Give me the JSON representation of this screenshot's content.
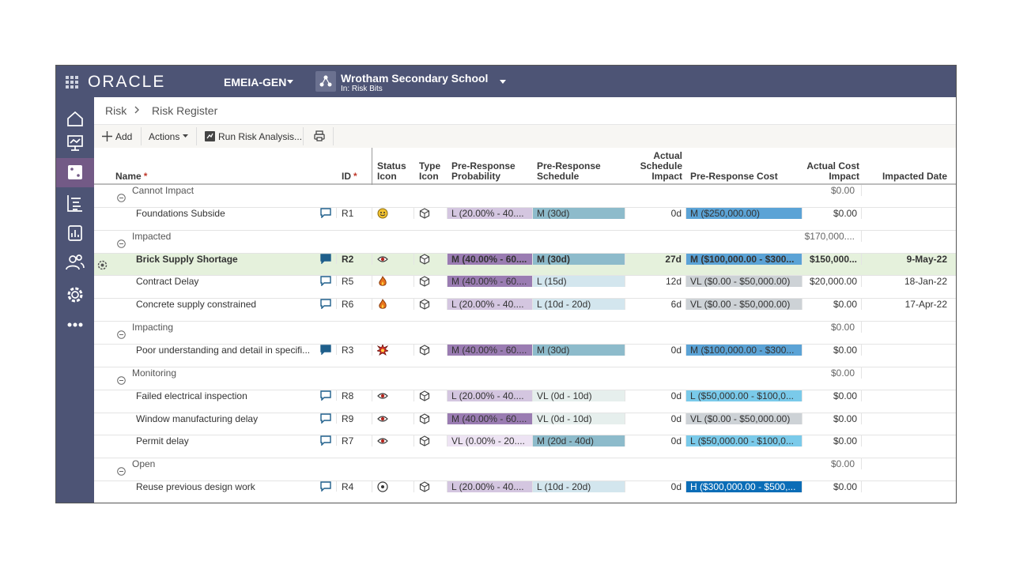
{
  "header": {
    "logo": "ORACLE",
    "workspace": "EMEIA-GEN",
    "project": "Wrotham Secondary School",
    "project_location": "In: Risk Bits"
  },
  "breadcrumb": [
    "Risk",
    "Risk Register"
  ],
  "toolbar": {
    "add": "Add",
    "actions": "Actions",
    "run": "Run Risk Analysis..."
  },
  "table": {
    "required_mark": "*",
    "columns": [
      "Name",
      "ID",
      "Status Icon",
      "Type Icon",
      "Pre-Response Probability",
      "Pre-Response Schedule",
      "Actual Schedule Impact",
      "Pre-Response Cost",
      "Actual Cost Impact",
      "Impacted Date"
    ],
    "rows": [
      {
        "group": "Cannot Impact",
        "actual_cost": "$0.00"
      },
      {
        "name": "Foundations Subside",
        "id": "R1",
        "probability": "L (20.00% - 40....",
        "schedule": "M (30d)",
        "actual_schedule": "0d",
        "cost": "M ($250,000.00)",
        "actual_cost": "$0.00"
      },
      {
        "group": "Impacted",
        "actual_cost": "$170,000...."
      },
      {
        "name": "Brick Supply Shortage",
        "id": "R2",
        "probability": "M (40.00% - 60....",
        "schedule": "M (30d)",
        "actual_schedule": "27d",
        "cost": "M ($100,000.00 - $300...",
        "actual_cost": "$150,000...",
        "date": "9-May-22"
      },
      {
        "name": "Contract Delay",
        "id": "R5",
        "probability": "M (40.00% - 60....",
        "schedule": "L (15d)",
        "actual_schedule": "12d",
        "cost": "VL ($0.00 - $50,000.00)",
        "actual_cost": "$20,000.00",
        "date": "18-Jan-22"
      },
      {
        "name": "Concrete supply constrained",
        "id": "R6",
        "probability": "L (20.00% - 40....",
        "schedule": "L (10d - 20d)",
        "actual_schedule": "6d",
        "cost": "VL ($0.00 - $50,000.00)",
        "actual_cost": "$0.00",
        "date": "17-Apr-22"
      },
      {
        "group": "Impacting",
        "actual_cost": "$0.00"
      },
      {
        "name": "Poor understanding and detail in specifi...",
        "id": "R3",
        "probability": "M (40.00% - 60....",
        "schedule": "M (30d)",
        "actual_schedule": "0d",
        "cost": "M ($100,000.00 - $300...",
        "actual_cost": "$0.00"
      },
      {
        "group": "Monitoring",
        "actual_cost": "$0.00"
      },
      {
        "name": "Failed electrical inspection",
        "id": "R8",
        "probability": "L (20.00% - 40....",
        "schedule": "VL (0d - 10d)",
        "actual_schedule": "0d",
        "cost": "L ($50,000.00 - $100,0...",
        "actual_cost": "$0.00"
      },
      {
        "name": "Window manufacturing delay",
        "id": "R9",
        "probability": "M (40.00% - 60....",
        "schedule": "VL (0d - 10d)",
        "actual_schedule": "0d",
        "cost": "VL ($0.00 - $50,000.00)",
        "actual_cost": "$0.00"
      },
      {
        "name": "Permit delay",
        "id": "R7",
        "probability": "VL (0.00% - 20....",
        "schedule": "M (20d - 40d)",
        "actual_schedule": "0d",
        "cost": "L ($50,000.00 - $100,0...",
        "actual_cost": "$0.00"
      },
      {
        "group": "Open",
        "actual_cost": "$0.00"
      },
      {
        "name": "Reuse previous design work",
        "id": "R4",
        "probability": "L (20.00% - 40....",
        "schedule": "L (10d - 20d)",
        "actual_schedule": "0d",
        "cost": "H ($300,000.00 - $500,...",
        "actual_cost": "$0.00"
      }
    ]
  }
}
